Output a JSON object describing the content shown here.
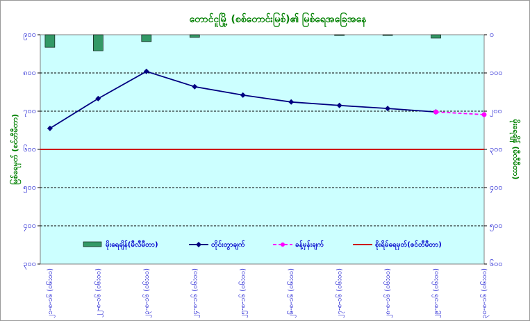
{
  "chart_data": {
    "type": "bar-line",
    "title": "တောင်ငူမြို့ (စစ်တောင်းမြစ်)၏ မြစ်ရေအခြေအနေ",
    "y_label": "မြစ်ရေမှတ် (စင်တီမီတာ)",
    "y2_label": "မိုးရေချိန် (မီလီမီတာ)",
    "categories": [
      "၂၁-၈-၁၆ (၀၆:၀၀)",
      "၂၂-၈-၁၆ (၀၆:၀၀)",
      "၂၃-၈-၁၆ (၀၆:၀၀)",
      "၂၄-၈-၁၆ (၀၆:၀၀)",
      "၂၅-၈-၁၆ (၀၆:၀၀)",
      "၂၆-၈-၁၆ (၀၆:၀၀)",
      "၂၇-၈-၁၆ (၀၆:၀၀)",
      "၂၈-၈-၁၆ (၀၆:၀၀)",
      "၂၉-၈-၁၆ (၀၆:၀၀)",
      "၃၀-၈-၁၆ (၀၆:၀၀)"
    ],
    "series": [
      {
        "name": "မိုးရေချိန်(မီလီမီတာ)",
        "type": "bar",
        "axis": "y2",
        "color": "#339966",
        "values": [
          33,
          42,
          18,
          7,
          0,
          0,
          2,
          2,
          9,
          0
        ]
      },
      {
        "name": "တိုင်းတွာချက်",
        "type": "line",
        "color": "#000080",
        "marker": "diamond",
        "values": [
          655,
          733,
          804,
          764,
          742,
          724,
          715,
          707,
          698,
          null
        ]
      },
      {
        "name": "ခန့်မှန်းချက်",
        "type": "line",
        "color": "#ff00ff",
        "marker": "circle",
        "dash": true,
        "values": [
          null,
          null,
          null,
          null,
          null,
          null,
          null,
          null,
          698,
          691
        ]
      },
      {
        "name": "စိုးရိမ်ရေမှတ်(စင်တီမီတာ)",
        "type": "hline",
        "color": "#cc0000",
        "value": 600
      }
    ],
    "ylim": [
      300,
      900
    ],
    "yticks": [
      {
        "value": 300,
        "label": "၃၀၀"
      },
      {
        "value": 400,
        "label": "၄၀၀"
      },
      {
        "value": 500,
        "label": "၅၀၀"
      },
      {
        "value": 600,
        "label": "၆၀၀"
      },
      {
        "value": 700,
        "label": "၇၀၀"
      },
      {
        "value": 800,
        "label": "၈၀၀"
      },
      {
        "value": 900,
        "label": "၉၀၀"
      }
    ],
    "y2lim": [
      600,
      0
    ],
    "y2ticks": [
      {
        "value": 0,
        "label": "၀"
      },
      {
        "value": 100,
        "label": "၁၀၀"
      },
      {
        "value": 200,
        "label": "၂၀၀"
      },
      {
        "value": 300,
        "label": "၃၀၀"
      },
      {
        "value": 400,
        "label": "၄၀၀"
      },
      {
        "value": 500,
        "label": "၅၀၀"
      },
      {
        "value": 600,
        "label": "၆၀၀"
      }
    ],
    "grid": true,
    "background": "#ccffff"
  }
}
